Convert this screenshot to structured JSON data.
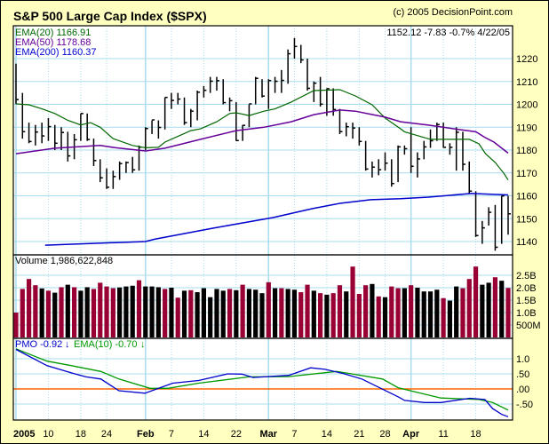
{
  "header": {
    "title": "S&P 500 Large Cap Index ($SPX)",
    "copyright": "(c) 2005 DecisionPoint.com",
    "last_quote": "1152.12  -7.83  -0.7%  4/22/05"
  },
  "colors": {
    "frame": "#FFFFC0",
    "grid": "#A8DCEE",
    "bar": "#000000",
    "ema20": "#006600",
    "ema50": "#660099",
    "ema200": "#0000CC",
    "vol_down": "#990033",
    "vol_up": "#000000",
    "pmo": "#0000CC",
    "pmo_ema": "#009900",
    "zero": "#FF6600"
  },
  "chart_data": [
    {
      "type": "ohlc",
      "panel": "price",
      "legend": [
        {
          "label": "EMA(20) 1166.91",
          "series": "ema20"
        },
        {
          "label": "EMA(50) 1178.68",
          "series": "ema50"
        },
        {
          "label": "EMA(200) 1160.37",
          "series": "ema200"
        }
      ],
      "ylim": [
        1134,
        1234
      ],
      "yticks": [
        1140,
        1150,
        1160,
        1170,
        1180,
        1190,
        1200,
        1210,
        1220
      ],
      "high": [
        1217.8,
        1205,
        1192,
        1191,
        1192,
        1194,
        1191,
        1190,
        1188,
        1187,
        1196,
        1196,
        1185,
        1176,
        1172,
        1171,
        1175,
        1175,
        1177,
        1182,
        1190,
        1193,
        1193,
        1203,
        1205,
        1205,
        1203,
        1198,
        1206,
        1208,
        1212,
        1212,
        1211,
        1203,
        1201,
        1191,
        1200,
        1212,
        1211,
        1211,
        1212,
        1215,
        1224,
        1229,
        1226,
        1220,
        1210,
        1212,
        1207,
        1207,
        1198,
        1192,
        1192,
        1190,
        1184,
        1175,
        1176,
        1179,
        1176,
        1182,
        1182,
        1190,
        1179,
        1184,
        1189,
        1192,
        1192,
        1183,
        1190,
        1188,
        1175,
        1162,
        1149,
        1155,
        1156,
        1160,
        1160
      ],
      "low": [
        1200.1,
        1185,
        1183,
        1182,
        1183,
        1184,
        1180,
        1180,
        1175,
        1176,
        1184,
        1184,
        1173,
        1166,
        1163,
        1163,
        1167,
        1170,
        1170,
        1171,
        1180,
        1187,
        1185,
        1189,
        1198,
        1200,
        1191,
        1190,
        1193,
        1203,
        1205,
        1206,
        1200,
        1197,
        1184,
        1184,
        1190,
        1200,
        1203,
        1198,
        1205,
        1205,
        1209,
        1220,
        1218,
        1206,
        1201,
        1199,
        1195,
        1195,
        1187,
        1186,
        1185,
        1182,
        1171,
        1168,
        1169,
        1171,
        1164,
        1166,
        1178,
        1170,
        1168,
        1176,
        1181,
        1184,
        1181,
        1178,
        1171,
        1171,
        1161,
        1142,
        1139,
        1147,
        1136,
        1139,
        1143
      ],
      "close": [
        1202.08,
        1188.05,
        1183.74,
        1187.89,
        1186.19,
        1190.25,
        1182.99,
        1187.7,
        1177.45,
        1184.52,
        1195.98,
        1184.63,
        1175.41,
        1167.87,
        1163.75,
        1168.41,
        1174.07,
        1174.55,
        1171.36,
        1181.27,
        1189.41,
        1193.19,
        1189.89,
        1203.03,
        1201.72,
        1202.3,
        1191.99,
        1197.01,
        1205.3,
        1206.14,
        1210.12,
        1210.34,
        1200.75,
        1201.59,
        1184.16,
        1190.8,
        1200.2,
        1211.37,
        1203.6,
        1210.41,
        1210.08,
        1210.47,
        1222.12,
        1225.31,
        1219.43,
        1207.01,
        1209.25,
        1200.08,
        1206.83,
        1197.75,
        1188.07,
        1190.21,
        1189.65,
        1183.78,
        1171.71,
        1172.53,
        1171.42,
        1174.28,
        1165.36,
        1181.41,
        1180.59,
        1172.92,
        1176.12,
        1181.39,
        1184.07,
        1191.14,
        1181.2,
        1181.21,
        1187.76,
        1173.79,
        1162.05,
        1142.62,
        1145.98,
        1152.78,
        1137.5,
        1159.95,
        1152.12
      ],
      "ema20": [
        [
          0,
          1200.2
        ],
        [
          2,
          1199.8
        ],
        [
          4,
          1198
        ],
        [
          6,
          1196
        ],
        [
          8,
          1193
        ],
        [
          10,
          1191
        ],
        [
          11.5,
          1192
        ],
        [
          13,
          1190
        ],
        [
          15,
          1185
        ],
        [
          18,
          1182
        ],
        [
          20,
          1181
        ],
        [
          22,
          1181.2
        ],
        [
          23,
          1183.5
        ],
        [
          25,
          1186
        ],
        [
          27,
          1188.5
        ],
        [
          28.5,
          1189.3
        ],
        [
          31,
          1192.4
        ],
        [
          33,
          1196
        ],
        [
          34,
          1196.3
        ],
        [
          36,
          1195.1
        ],
        [
          38.3,
          1197
        ],
        [
          40,
          1198
        ],
        [
          42.5,
          1201
        ],
        [
          46,
          1206
        ],
        [
          50,
          1206.4
        ],
        [
          52.4,
          1203.7
        ],
        [
          55,
          1199.8
        ],
        [
          57,
          1194
        ],
        [
          59.4,
          1189.3
        ],
        [
          60,
          1188
        ],
        [
          64,
          1184.7
        ],
        [
          68,
          1184.7
        ],
        [
          70,
          1184.7
        ],
        [
          71.5,
          1182.7
        ],
        [
          72.5,
          1178.4
        ],
        [
          74,
          1174.6
        ],
        [
          75.3,
          1170
        ],
        [
          76,
          1166.91
        ]
      ],
      "ema50": [
        [
          0,
          1178.4
        ],
        [
          6,
          1180.8
        ],
        [
          13,
          1182
        ],
        [
          15.4,
          1181
        ],
        [
          20,
          1179.6
        ],
        [
          23,
          1180.8
        ],
        [
          28.5,
          1184.7
        ],
        [
          34,
          1188.5
        ],
        [
          38.3,
          1190
        ],
        [
          42.5,
          1192.4
        ],
        [
          46,
          1195.5
        ],
        [
          50,
          1197.5
        ],
        [
          52.4,
          1197
        ],
        [
          57,
          1194.4
        ],
        [
          59.4,
          1192.4
        ],
        [
          63.7,
          1190.9
        ],
        [
          68.3,
          1189
        ],
        [
          71,
          1188
        ],
        [
          72.5,
          1185.4
        ],
        [
          73.8,
          1183.5
        ],
        [
          76,
          1178.68
        ]
      ],
      "ema200": [
        [
          4.5,
          1138.4
        ],
        [
          20,
          1140
        ],
        [
          21.4,
          1141
        ],
        [
          30.3,
          1145.8
        ],
        [
          39.7,
          1150.5
        ],
        [
          45.8,
          1154.4
        ],
        [
          50,
          1156.7
        ],
        [
          54.8,
          1158.3
        ],
        [
          59.4,
          1158.7
        ],
        [
          63.7,
          1159.4
        ],
        [
          70.3,
          1161
        ],
        [
          76,
          1160.37
        ]
      ]
    },
    {
      "type": "bar",
      "panel": "volume",
      "label": "Volume  1,986,622,848",
      "unit": "B",
      "ylim": [
        0,
        3.3
      ],
      "yticks": [
        {
          "v": 0.5,
          "label": "500M"
        },
        {
          "v": 1.0,
          "label": "1.0B"
        },
        {
          "v": 1.5,
          "label": "1.5B"
        },
        {
          "v": 2.0,
          "label": "2.0B"
        },
        {
          "v": 2.5,
          "label": "2.5B"
        }
      ],
      "values": [
        1.0,
        1.95,
        2.35,
        2.1,
        1.97,
        1.88,
        1.8,
        2.02,
        2.12,
        2.02,
        1.88,
        2.02,
        1.95,
        2.2,
        2.05,
        1.98,
        2.01,
        2.05,
        2.08,
        2.3,
        2.05,
        2.05,
        2.02,
        1.95,
        2.0,
        1.6,
        1.88,
        1.9,
        1.82,
        1.98,
        1.62,
        1.95,
        1.88,
        1.95,
        1.9,
        2.12,
        1.95,
        1.92,
        1.78,
        2.22,
        1.98,
        1.98,
        1.95,
        1.92,
        1.82,
        2.12,
        1.88,
        1.78,
        1.72,
        1.78,
        2.1,
        1.85,
        2.85,
        1.75,
        2.1,
        2.15,
        1.65,
        1.62,
        2.05,
        1.98,
        1.98,
        2.1,
        2.0,
        1.85,
        1.85,
        1.92,
        1.58,
        1.48,
        2.05,
        1.98,
        2.35,
        2.85,
        2.12,
        2.2,
        2.42,
        2.28,
        1.99
      ],
      "down": "rrrrkrkrkrkkrrrrkkkrkkkrkrkrkkkkkrkrkkkrkrkkrrkrkrrkrrrkrkrrkrkkkkrkkrrrkkrkr"
    },
    {
      "type": "line",
      "panel": "pmo",
      "legend": [
        {
          "label": "PMO  -0.92",
          "arrow": "↓",
          "series": "pmo"
        },
        {
          "label": "EMA(10)  -0.70",
          "arrow": "↓",
          "series": "pmo_ema"
        }
      ],
      "ylim": [
        -1.0,
        1.45
      ],
      "yticks": [
        {
          "v": 1.0,
          "label": "1.0"
        },
        {
          "v": 0.5,
          "label": ".50"
        },
        {
          "v": 0,
          "label": ".00"
        },
        {
          "v": -0.5,
          "label": "-.50"
        }
      ],
      "pmo": [
        [
          0,
          1.31
        ],
        [
          4.8,
          0.77
        ],
        [
          8.6,
          0.53
        ],
        [
          10.8,
          0.4
        ],
        [
          13.1,
          0.33
        ],
        [
          15.9,
          -0.06
        ],
        [
          19.9,
          -0.14
        ],
        [
          24.2,
          0.19
        ],
        [
          28.2,
          0.28
        ],
        [
          32.7,
          0.5
        ],
        [
          34.9,
          0.49
        ],
        [
          36.6,
          0.38
        ],
        [
          42.1,
          0.45
        ],
        [
          45.5,
          0.7
        ],
        [
          47.7,
          0.65
        ],
        [
          50.6,
          0.51
        ],
        [
          53.4,
          0.33
        ],
        [
          59,
          -0.26
        ],
        [
          60,
          -0.38
        ],
        [
          63.1,
          -0.45
        ],
        [
          65.6,
          -0.45
        ],
        [
          70.1,
          -0.31
        ],
        [
          72.4,
          -0.35
        ],
        [
          73.6,
          -0.65
        ],
        [
          75,
          -0.84
        ],
        [
          76,
          -0.92
        ]
      ],
      "pmo_ema": [
        [
          0,
          1.33
        ],
        [
          4.8,
          0.92
        ],
        [
          8.6,
          0.77
        ],
        [
          13.1,
          0.58
        ],
        [
          15.9,
          0.33
        ],
        [
          20.7,
          0.02
        ],
        [
          23.5,
          0.02
        ],
        [
          28.2,
          0.19
        ],
        [
          36,
          0.4
        ],
        [
          42.1,
          0.41
        ],
        [
          49.5,
          0.58
        ],
        [
          51,
          0.53
        ],
        [
          56.6,
          0.33
        ],
        [
          59,
          0.04
        ],
        [
          65.6,
          -0.3
        ],
        [
          71.5,
          -0.35
        ],
        [
          73.6,
          -0.45
        ],
        [
          76,
          -0.7
        ]
      ]
    }
  ],
  "xaxis": {
    "labels": [
      {
        "bar": 0,
        "label": "2005",
        "bold": true,
        "month": true
      },
      {
        "bar": 5,
        "label": "10"
      },
      {
        "bar": 10,
        "label": "18"
      },
      {
        "bar": 14,
        "label": "24"
      },
      {
        "bar": 20,
        "label": "Feb",
        "bold": true,
        "month": true
      },
      {
        "bar": 24,
        "label": "7"
      },
      {
        "bar": 29,
        "label": "14"
      },
      {
        "bar": 34,
        "label": "22"
      },
      {
        "bar": 39,
        "label": "Mar",
        "bold": true,
        "month": true
      },
      {
        "bar": 43,
        "label": "7"
      },
      {
        "bar": 48,
        "label": "14"
      },
      {
        "bar": 53,
        "label": "21"
      },
      {
        "bar": 57,
        "label": "28"
      },
      {
        "bar": 61,
        "label": "Apr",
        "bold": true,
        "month": true
      },
      {
        "bar": 66,
        "label": "11"
      },
      {
        "bar": 71,
        "label": "18"
      }
    ]
  }
}
